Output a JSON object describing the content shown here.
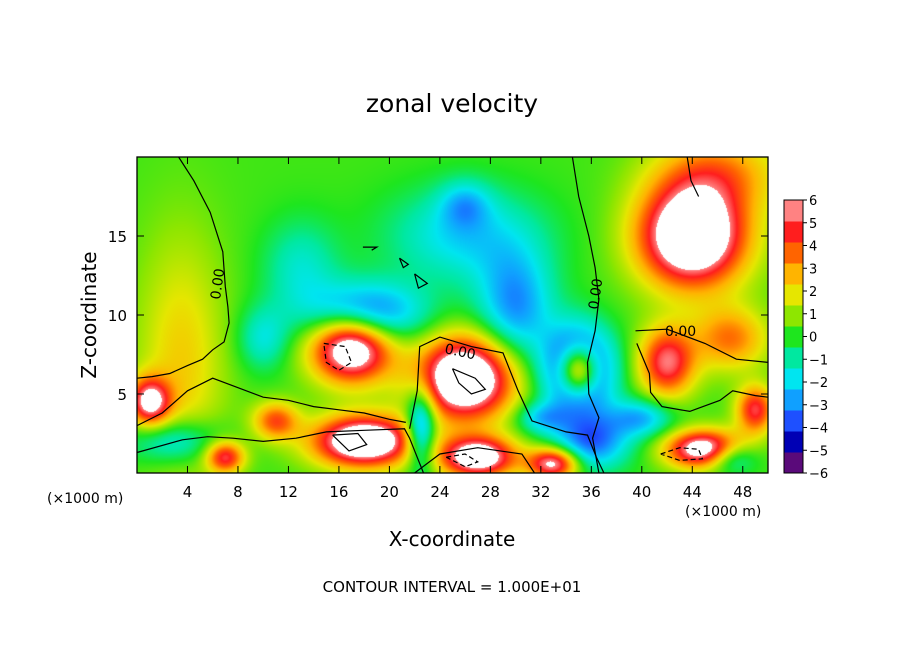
{
  "chart_data": {
    "type": "heatmap",
    "title": "zonal velocity",
    "xlabel": "X-coordinate",
    "ylabel": "Z-coordinate",
    "x_unit_left": "(×1000 m)",
    "x_unit_right": "(×1000 m)",
    "xlim": [
      0,
      50
    ],
    "ylim": [
      0,
      20
    ],
    "xticks": [
      "4",
      "8",
      "12",
      "16",
      "20",
      "24",
      "28",
      "32",
      "36",
      "40",
      "44",
      "48"
    ],
    "xtick_values": [
      4,
      8,
      12,
      16,
      20,
      24,
      28,
      32,
      36,
      40,
      44,
      48
    ],
    "yticks": [
      "5",
      "10",
      "15"
    ],
    "ytick_values": [
      5,
      10,
      15
    ],
    "colorbar": {
      "min": -6,
      "max": 6,
      "ticks": [
        "6",
        "5",
        "4",
        "3",
        "2",
        "1",
        "0",
        "−1",
        "−2",
        "−3",
        "−4",
        "−5",
        "−6"
      ],
      "colors": [
        "#5a0a7a",
        "#0000b4",
        "#1e50ff",
        "#10a0ff",
        "#00e5f0",
        "#00e8a0",
        "#1ee61e",
        "#8ee600",
        "#e6e600",
        "#ffb400",
        "#ff6400",
        "#ff1e1e",
        "#ff8282"
      ],
      "saturation_color": "#ffffff"
    },
    "features": [
      {
        "x": 44,
        "y": 15,
        "sx": 4.2,
        "sy": 3.2,
        "v": 9.0
      },
      {
        "x": 46,
        "y": 19,
        "sx": 5.0,
        "sy": 2.5,
        "v": 3.0
      },
      {
        "x": 42,
        "y": 7.0,
        "sx": 2.2,
        "sy": 2.2,
        "v": 5.5
      },
      {
        "x": 47,
        "y": 8.5,
        "sx": 3.0,
        "sy": 2.0,
        "v": 3.5
      },
      {
        "x": 17,
        "y": 8.0,
        "sx": 3.2,
        "sy": 2.2,
        "v": 8.5
      },
      {
        "x": 26,
        "y": 6.0,
        "sx": 3.8,
        "sy": 2.6,
        "v": 9.0
      },
      {
        "x": 18,
        "y": 2.0,
        "sx": 4.0,
        "sy": 1.6,
        "v": 8.5
      },
      {
        "x": 27,
        "y": 1.0,
        "sx": 3.0,
        "sy": 1.3,
        "v": 7.5
      },
      {
        "x": 33,
        "y": 0.6,
        "sx": 2.0,
        "sy": 1.0,
        "v": 6.5
      },
      {
        "x": 11,
        "y": 3.3,
        "sx": 1.8,
        "sy": 1.2,
        "v": 4.0
      },
      {
        "x": 3.5,
        "y": 7.0,
        "sx": 3.5,
        "sy": 8.0,
        "v": 2.2
      },
      {
        "x": 1,
        "y": 4.5,
        "sx": 1.6,
        "sy": 1.5,
        "v": 6.0
      },
      {
        "x": 45,
        "y": 1.5,
        "sx": 3.0,
        "sy": 1.2,
        "v": 7.5
      },
      {
        "x": 7,
        "y": 1.0,
        "sx": 1.5,
        "sy": 1.0,
        "v": 5.0
      },
      {
        "x": 49,
        "y": 4.0,
        "sx": 1.5,
        "sy": 1.5,
        "v": 5.0
      },
      {
        "x": 35,
        "y": 6.5,
        "sx": 1.6,
        "sy": 1.6,
        "v": 9.0
      },
      {
        "x": 35,
        "y": 6.5,
        "sx": 2.6,
        "sy": 2.6,
        "v": -8.0
      },
      {
        "x": 18,
        "y": 10.0,
        "sx": 4.5,
        "sy": 2.0,
        "v": -5.0
      },
      {
        "x": 30,
        "y": 10.5,
        "sx": 3.0,
        "sy": 3.5,
        "v": -3.5
      },
      {
        "x": 26,
        "y": 15,
        "sx": 6.0,
        "sy": 3.0,
        "v": -2.5
      },
      {
        "x": 26,
        "y": 17,
        "sx": 2.0,
        "sy": 1.5,
        "v": -2.0
      },
      {
        "x": 13,
        "y": 13,
        "sx": 3.0,
        "sy": 3.0,
        "v": -1.8
      },
      {
        "x": 22.5,
        "y": 2.8,
        "sx": 1.2,
        "sy": 2.6,
        "v": -5.0
      },
      {
        "x": 36,
        "y": 2.0,
        "sx": 3.0,
        "sy": 1.8,
        "v": -4.0
      },
      {
        "x": 40,
        "y": 3.5,
        "sx": 2.5,
        "sy": 1.2,
        "v": -3.0
      },
      {
        "x": 3,
        "y": 2.0,
        "sx": 3.5,
        "sy": 1.5,
        "v": -3.0
      },
      {
        "x": 10,
        "y": 8.5,
        "sx": 2.0,
        "sy": 2.0,
        "v": -2.0
      },
      {
        "x": 32,
        "y": 3.5,
        "sx": 2.0,
        "sy": 1.0,
        "v": -2.5
      },
      {
        "x": 47,
        "y": 1.0,
        "sx": 2.0,
        "sy": 1.0,
        "v": -3.5
      }
    ],
    "contour_labels": [
      "0.00",
      "0.00",
      "0.00",
      "0.00"
    ],
    "contour_lines": [
      {
        "style": "solid",
        "points": [
          [
            3.3,
            20
          ],
          [
            4.5,
            18.5
          ],
          [
            5.8,
            16.5
          ],
          [
            6.8,
            14
          ],
          [
            7.0,
            11.8
          ],
          [
            7.2,
            10.5
          ],
          [
            7.3,
            9.5
          ],
          [
            6.9,
            8.3
          ],
          [
            6.0,
            7.8
          ],
          [
            5.2,
            7.2
          ],
          [
            4.0,
            6.8
          ],
          [
            2.6,
            6.3
          ],
          [
            1.2,
            6.1
          ],
          [
            0,
            6.0
          ]
        ]
      },
      {
        "style": "solid",
        "points": [
          [
            34.5,
            20
          ],
          [
            35.0,
            17.5
          ],
          [
            35.8,
            15
          ],
          [
            36.3,
            13
          ],
          [
            36.6,
            11
          ],
          [
            36.3,
            9
          ],
          [
            35.7,
            7
          ],
          [
            35.8,
            5
          ],
          [
            36.6,
            3.5
          ],
          [
            36.1,
            2.2
          ],
          [
            36.6,
            0
          ]
        ]
      },
      {
        "style": "solid",
        "points": [
          [
            43.6,
            20
          ],
          [
            43.9,
            18.5
          ],
          [
            44.5,
            17.5
          ]
        ]
      },
      {
        "style": "solid",
        "points": [
          [
            39.5,
            9
          ],
          [
            42,
            9.1
          ],
          [
            45,
            8.2
          ],
          [
            47.5,
            7.2
          ],
          [
            50,
            7.0
          ]
        ]
      },
      {
        "style": "solid",
        "points": [
          [
            39.6,
            8.2
          ],
          [
            40.6,
            6.3
          ],
          [
            40.7,
            5.1
          ],
          [
            41.6,
            4.2
          ],
          [
            43.8,
            3.9
          ],
          [
            46.2,
            4.6
          ],
          [
            47.2,
            5.2
          ],
          [
            49,
            4.9
          ],
          [
            50,
            4.8
          ]
        ]
      },
      {
        "style": "solid",
        "points": [
          [
            0,
            1.3
          ],
          [
            3.6,
            2.1
          ],
          [
            5.6,
            2.3
          ],
          [
            7.6,
            2.2
          ],
          [
            10,
            2.0
          ],
          [
            12.6,
            2.2
          ],
          [
            15,
            2.6
          ],
          [
            18,
            2.7
          ],
          [
            21.2,
            2.8
          ],
          [
            21.6,
            2.2
          ],
          [
            22.4,
            0.6
          ],
          [
            22.7,
            0
          ]
        ]
      },
      {
        "style": "solid",
        "points": [
          [
            21.6,
            2.8
          ],
          [
            22.2,
            5.2
          ],
          [
            22.4,
            8.0
          ],
          [
            24,
            8.6
          ],
          [
            26.5,
            8.0
          ],
          [
            29,
            7.6
          ],
          [
            30.2,
            5.2
          ],
          [
            31.3,
            3.3
          ],
          [
            34,
            2.6
          ],
          [
            35.7,
            2.4
          ],
          [
            36.4,
            1.0
          ],
          [
            37,
            0
          ]
        ]
      },
      {
        "style": "solid",
        "points": [
          [
            22,
            0
          ],
          [
            24,
            1.2
          ],
          [
            27,
            1.6
          ],
          [
            30.5,
            1.2
          ],
          [
            31.5,
            0
          ]
        ]
      },
      {
        "style": "solid",
        "points": [
          [
            0,
            3.0
          ],
          [
            2,
            3.8
          ],
          [
            4,
            5.2
          ],
          [
            6,
            6.0
          ],
          [
            8,
            5.4
          ],
          [
            10,
            4.8
          ],
          [
            12,
            4.6
          ],
          [
            14,
            4.2
          ],
          [
            16,
            4.0
          ],
          [
            18,
            3.8
          ],
          [
            20,
            3.4
          ],
          [
            21.3,
            3.2
          ]
        ]
      },
      {
        "style": "dashed",
        "points": [
          [
            14.8,
            8.2
          ],
          [
            16.5,
            8.0
          ],
          [
            17.0,
            7.0
          ],
          [
            16.0,
            6.5
          ],
          [
            15.0,
            7.0
          ],
          [
            14.8,
            8.2
          ]
        ]
      },
      {
        "style": "solid",
        "points": [
          [
            25,
            6.6
          ],
          [
            26.8,
            6.0
          ],
          [
            27.6,
            5.3
          ],
          [
            26.5,
            5.0
          ],
          [
            25.5,
            5.7
          ],
          [
            25,
            6.6
          ]
        ]
      },
      {
        "style": "solid",
        "points": [
          [
            15.5,
            2.4
          ],
          [
            17.5,
            2.5
          ],
          [
            18.2,
            1.8
          ],
          [
            16.8,
            1.4
          ],
          [
            15.5,
            2.4
          ]
        ]
      },
      {
        "style": "dashed",
        "points": [
          [
            24.5,
            1.0
          ],
          [
            26,
            1.2
          ],
          [
            27,
            0.7
          ],
          [
            26,
            0.4
          ],
          [
            24.5,
            1.0
          ]
        ]
      },
      {
        "style": "dashed",
        "points": [
          [
            41.5,
            1.2
          ],
          [
            43,
            1.6
          ],
          [
            44.5,
            1.5
          ],
          [
            44.8,
            0.9
          ],
          [
            43,
            0.8
          ],
          [
            41.5,
            1.2
          ]
        ]
      },
      {
        "style": "solid",
        "points": [
          [
            17.9,
            14.3
          ],
          [
            19.0,
            14.3
          ],
          [
            18.6,
            14.1
          ]
        ]
      },
      {
        "style": "solid",
        "points": [
          [
            20.8,
            13.6
          ],
          [
            21.5,
            13.2
          ],
          [
            21.1,
            13.0
          ],
          [
            20.8,
            13.6
          ]
        ]
      },
      {
        "style": "solid",
        "points": [
          [
            22.0,
            12.6
          ],
          [
            23.0,
            12.0
          ],
          [
            22.3,
            11.7
          ],
          [
            22.0,
            12.6
          ]
        ]
      }
    ],
    "footnote": "CONTOUR INTERVAL = 1.000E+01"
  }
}
